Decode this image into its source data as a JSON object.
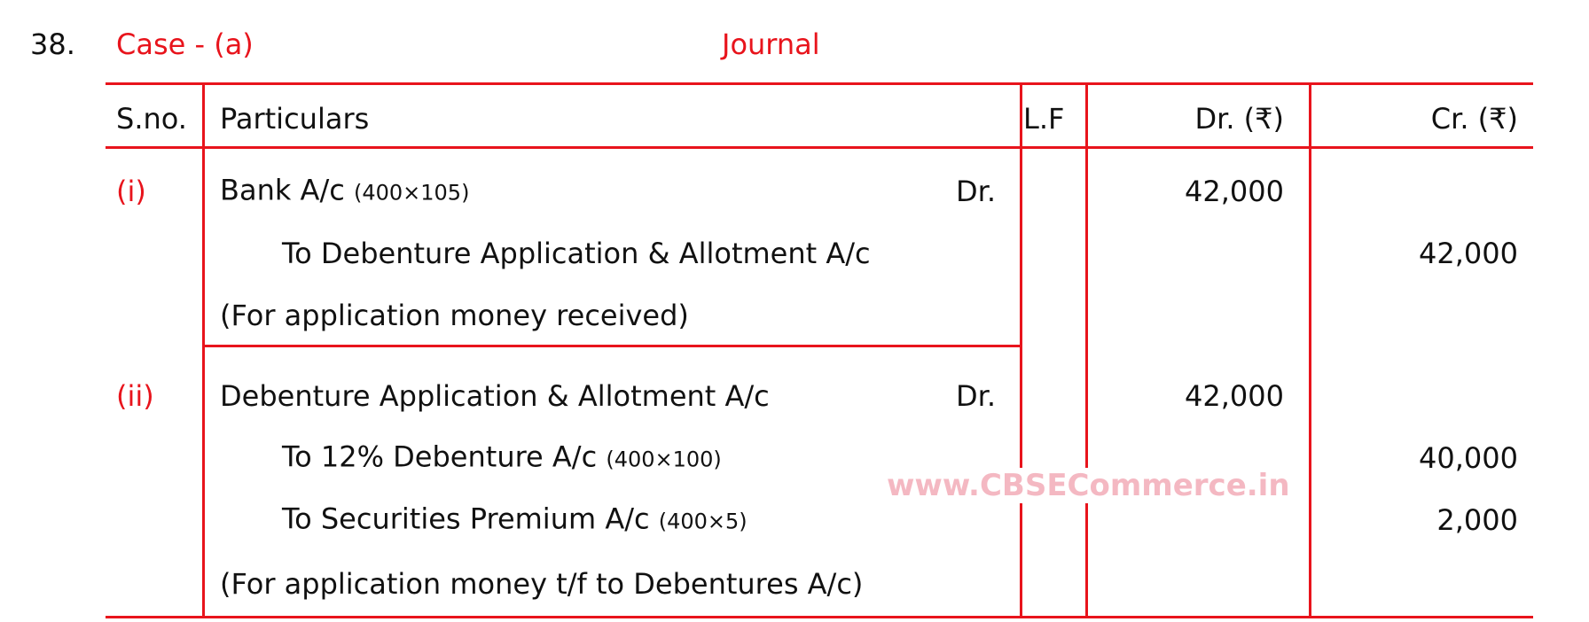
{
  "question_number": "38.",
  "case_label": "Case - (a)",
  "title": "Journal",
  "colors": {
    "accent": "#e8141c",
    "watermark": "#f4b8c2"
  },
  "headers": {
    "sno": "S.no.",
    "particulars": "Particulars",
    "lf": "L.F",
    "dr": "Dr. (₹)",
    "cr": "Cr. (₹)"
  },
  "entries": [
    {
      "sno": "(i)",
      "lines": [
        {
          "text": "Bank A/c",
          "note": "(400×105)",
          "dr_mark": "Dr.",
          "dr": "42,000",
          "cr": ""
        },
        {
          "text": "To Debenture Application & Allotment A/c",
          "note": "",
          "dr": "",
          "cr": "42,000"
        },
        {
          "text": "(For application money received)",
          "note": "",
          "dr": "",
          "cr": ""
        }
      ]
    },
    {
      "sno": "(ii)",
      "lines": [
        {
          "text": "Debenture Application & Allotment A/c",
          "note": "",
          "dr_mark": "Dr.",
          "dr": "42,000",
          "cr": ""
        },
        {
          "text": "To 12% Debenture A/c",
          "note": "(400×100)",
          "dr": "",
          "cr": "40,000"
        },
        {
          "text": "To Securities Premium A/c",
          "note": "(400×5)",
          "dr": "",
          "cr": "2,000"
        },
        {
          "text": "(For application money t/f to Debentures A/c)",
          "note": "",
          "dr": "",
          "cr": ""
        }
      ]
    }
  ],
  "watermark": "www.CBSECommerce.in"
}
